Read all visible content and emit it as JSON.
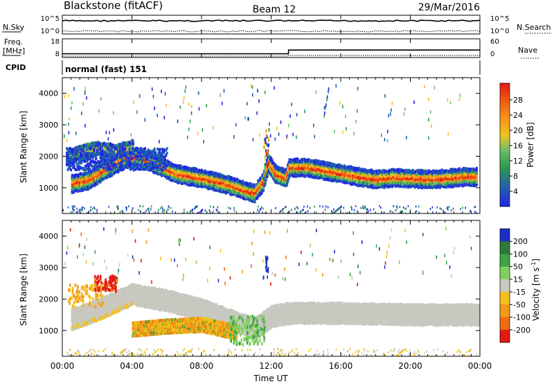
{
  "header": {
    "station": "Blackstone (fitACF)",
    "beam": "Beam 12",
    "date": "29/Mar/2016"
  },
  "noise_panel": {
    "left_label": "N.Sky",
    "right_label": "N.Search",
    "left_ticks": [
      "10^5",
      "10^0"
    ],
    "right_ticks": [
      "10^5",
      "10^0"
    ]
  },
  "freq_panel": {
    "left_label_line1": "Freq.",
    "left_label_line2": "[MHz]",
    "left_ticks": [
      "18",
      "8"
    ],
    "right_label": "Nave",
    "right_ticks": [
      "60",
      "0"
    ]
  },
  "cpid_panel": {
    "label": "CPID",
    "mode_text": "normal (fast) 151"
  },
  "x_axis": {
    "label": "Time UT",
    "ticks": [
      "00:00",
      "04:00",
      "08:00",
      "12:00",
      "16:00",
      "20:00",
      "00:00"
    ]
  },
  "power_panel": {
    "ylabel": "Slant Range [km]",
    "yticks": [
      "4000",
      "3000",
      "2000",
      "1000"
    ],
    "colorbar_label": "Power [dB]",
    "colorbar_ticks": [
      "28",
      "24",
      "20",
      "16",
      "12",
      "8",
      "4"
    ],
    "colors": [
      "#2323e6",
      "#1f5fb0",
      "#2e9a4f",
      "#6fc06a",
      "#f2c31d",
      "#f7921e",
      "#ef5a12",
      "#e41a12"
    ]
  },
  "velocity_panel": {
    "ylabel": "Slant Range [km]",
    "yticks": [
      "4000",
      "3000",
      "2000",
      "1000"
    ],
    "colorbar_label": "Velocity [m s",
    "colorbar_label_sup": "-1",
    "colorbar_label_end": "]",
    "colorbar_ticks": [
      "200",
      "100",
      "50",
      "15",
      "-15",
      "-50",
      "-100",
      "-200"
    ],
    "colors": [
      "#1a2fc4",
      "#2a7a3a",
      "#3fa346",
      "#7fd05a",
      "#c8c8c0",
      "#f2c01a",
      "#f39a18",
      "#ef6a14",
      "#e31a12"
    ]
  },
  "chart_data": {
    "type": "heatmap",
    "x_range_hours": [
      0,
      24
    ],
    "y_range_km": [
      180,
      4500
    ],
    "frequency_mhz": {
      "x": [
        0,
        13,
        13,
        24
      ],
      "y": [
        10,
        10,
        12,
        12
      ]
    },
    "power_bands": [
      {
        "name": "main echo",
        "points": [
          [
            0.5,
            1180
          ],
          [
            1.5,
            1300
          ],
          [
            2.5,
            1650
          ],
          [
            3.5,
            1950
          ],
          [
            4.2,
            2050
          ],
          [
            5.5,
            1750
          ],
          [
            6.5,
            1500
          ],
          [
            8,
            1350
          ],
          [
            9.5,
            1150
          ],
          [
            10.5,
            950
          ],
          [
            11,
            880
          ],
          [
            11.5,
            1250
          ],
          [
            11.8,
            1850
          ],
          [
            12.2,
            1500
          ],
          [
            12.8,
            1350
          ],
          [
            13,
            1700
          ],
          [
            14,
            1700
          ],
          [
            15,
            1600
          ],
          [
            16,
            1500
          ],
          [
            17,
            1400
          ],
          [
            18,
            1320
          ],
          [
            19,
            1380
          ],
          [
            20,
            1350
          ],
          [
            21,
            1330
          ],
          [
            22,
            1350
          ],
          [
            23,
            1400
          ],
          [
            23.8,
            1400
          ]
        ]
      },
      {
        "name": "upper echo",
        "points": [
          [
            0.2,
            1950
          ],
          [
            1,
            2200
          ],
          [
            2,
            2300
          ],
          [
            3,
            2200
          ],
          [
            4,
            2350
          ]
        ]
      }
    ],
    "velocity_bands": [
      {
        "name": "ground scatter",
        "points": [
          [
            0.5,
            1400
          ],
          [
            2,
            1700
          ],
          [
            4,
            2200
          ],
          [
            6,
            2000
          ],
          [
            8,
            1700
          ],
          [
            10,
            1300
          ],
          [
            11,
            1100
          ],
          [
            12,
            1500
          ],
          [
            13,
            1600
          ],
          [
            16,
            1600
          ],
          [
            20,
            1550
          ],
          [
            24,
            1550
          ]
        ]
      },
      {
        "name": "negative velocity",
        "points": [
          [
            4,
            1100
          ],
          [
            6,
            1200
          ],
          [
            8,
            1250
          ],
          [
            10,
            1000
          ]
        ]
      }
    ]
  }
}
